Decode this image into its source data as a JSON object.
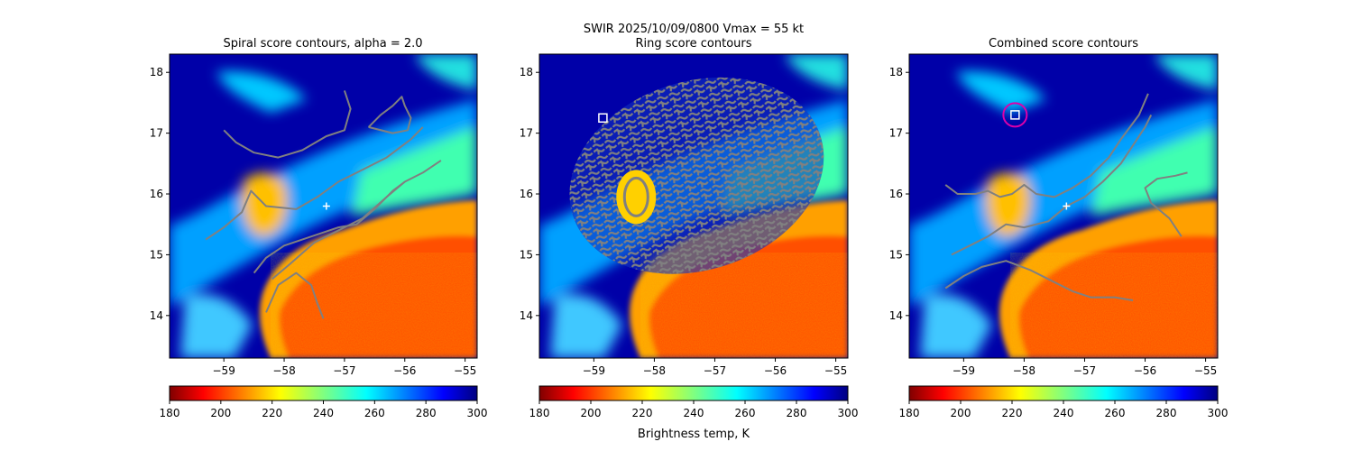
{
  "figure": {
    "suptitle_line1": "SWIR  2025/10/09/0800    Vmax = 55 kt",
    "colorbar_label": "Brightness temp, K"
  },
  "chart_data": [
    {
      "type": "heatmap",
      "title": "Spiral score contours, alpha =  2.0",
      "xlim": [
        -59.9,
        -54.8
      ],
      "ylim": [
        13.3,
        18.3
      ],
      "xticks": [
        -59,
        -58,
        -57,
        -56,
        -55
      ],
      "yticks": [
        14,
        15,
        16,
        17,
        18
      ],
      "colorbar": {
        "cmap": "jet_r",
        "range": [
          180,
          300
        ],
        "ticks": [
          180,
          200,
          220,
          240,
          260,
          280,
          300
        ]
      },
      "markers": [
        {
          "kind": "plus",
          "color": "#ffffff",
          "lon": -57.3,
          "lat": 15.8
        }
      ],
      "contour_color": "#808080",
      "contours": [
        [
          [
            -59.3,
            15.25
          ],
          [
            -59.0,
            15.45
          ],
          [
            -58.7,
            15.7
          ],
          [
            -58.55,
            16.05
          ],
          [
            -58.3,
            15.8
          ],
          [
            -57.8,
            15.75
          ],
          [
            -57.45,
            15.95
          ],
          [
            -57.1,
            16.2
          ],
          [
            -56.7,
            16.4
          ],
          [
            -56.3,
            16.6
          ],
          [
            -55.9,
            16.9
          ],
          [
            -55.7,
            17.1
          ]
        ],
        [
          [
            -58.2,
            14.6
          ],
          [
            -57.9,
            14.85
          ],
          [
            -57.5,
            15.2
          ],
          [
            -57.0,
            15.45
          ],
          [
            -56.7,
            15.6
          ],
          [
            -56.3,
            15.95
          ],
          [
            -56.0,
            16.2
          ],
          [
            -55.7,
            16.35
          ],
          [
            -55.4,
            16.55
          ]
        ],
        [
          [
            -58.5,
            14.7
          ],
          [
            -58.3,
            14.95
          ],
          [
            -58.0,
            15.15
          ],
          [
            -57.7,
            15.25
          ],
          [
            -57.4,
            15.35
          ],
          [
            -57.1,
            15.45
          ],
          [
            -56.8,
            15.5
          ],
          [
            -56.5,
            15.75
          ],
          [
            -56.2,
            16.05
          ],
          [
            -56.0,
            16.2
          ]
        ],
        [
          [
            -58.3,
            14.05
          ],
          [
            -58.1,
            14.5
          ],
          [
            -57.8,
            14.7
          ],
          [
            -57.55,
            14.5
          ],
          [
            -57.45,
            14.2
          ],
          [
            -57.35,
            13.95
          ]
        ],
        [
          [
            -59.0,
            17.05
          ],
          [
            -58.8,
            16.85
          ],
          [
            -58.5,
            16.68
          ],
          [
            -58.1,
            16.6
          ],
          [
            -57.7,
            16.72
          ],
          [
            -57.3,
            16.95
          ],
          [
            -57.0,
            17.05
          ],
          [
            -56.9,
            17.4
          ],
          [
            -57.0,
            17.7
          ]
        ],
        [
          [
            -56.6,
            17.1
          ],
          [
            -56.4,
            17.3
          ],
          [
            -56.2,
            17.45
          ],
          [
            -56.05,
            17.6
          ],
          [
            -56.0,
            17.45
          ],
          [
            -55.9,
            17.25
          ],
          [
            -55.95,
            17.05
          ],
          [
            -56.2,
            17.0
          ],
          [
            -56.6,
            17.1
          ]
        ]
      ]
    },
    {
      "type": "heatmap",
      "title": "Ring score contours",
      "xlim": [
        -59.9,
        -54.8
      ],
      "ylim": [
        13.3,
        18.3
      ],
      "xticks": [
        -59,
        -58,
        -57,
        -56,
        -55
      ],
      "yticks": [
        14,
        15,
        16,
        17,
        18
      ],
      "colorbar": {
        "cmap": "jet_r",
        "range": [
          180,
          300
        ],
        "ticks": [
          180,
          200,
          220,
          240,
          260,
          280,
          300
        ]
      },
      "markers": [
        {
          "kind": "square",
          "color": "#ffffff",
          "lon": -58.85,
          "lat": 17.25
        }
      ],
      "contour_color": "#808080",
      "ring_region": {
        "center_lon": -57.3,
        "center_lat": 16.3,
        "radius_lon": 2.15,
        "radius_lat": 1.55
      },
      "contours": []
    },
    {
      "type": "heatmap",
      "title": "Combined score contours",
      "xlim": [
        -59.9,
        -54.8
      ],
      "ylim": [
        13.3,
        18.3
      ],
      "xticks": [
        -59,
        -58,
        -57,
        -56,
        -55
      ],
      "yticks": [
        14,
        15,
        16,
        17,
        18
      ],
      "colorbar": {
        "cmap": "jet_r",
        "range": [
          180,
          300
        ],
        "ticks": [
          180,
          200,
          220,
          240,
          260,
          280,
          300
        ]
      },
      "markers": [
        {
          "kind": "plus",
          "color": "#ffffff",
          "lon": -57.3,
          "lat": 15.8
        },
        {
          "kind": "square",
          "color": "#ffffff",
          "lon": -58.15,
          "lat": 17.3
        },
        {
          "kind": "circle",
          "color": "#dd00aa",
          "lon": -58.15,
          "lat": 17.3
        }
      ],
      "contour_color": "#808080",
      "contours": [
        [
          [
            -59.2,
            15.0
          ],
          [
            -58.9,
            15.15
          ],
          [
            -58.6,
            15.3
          ],
          [
            -58.3,
            15.5
          ],
          [
            -58.0,
            15.45
          ],
          [
            -57.6,
            15.55
          ],
          [
            -57.3,
            15.8
          ],
          [
            -57.0,
            15.95
          ],
          [
            -56.7,
            16.2
          ],
          [
            -56.4,
            16.5
          ],
          [
            -56.2,
            16.8
          ],
          [
            -56.0,
            17.1
          ],
          [
            -55.9,
            17.3
          ]
        ],
        [
          [
            -59.3,
            16.15
          ],
          [
            -59.1,
            16.0
          ],
          [
            -58.8,
            16.0
          ],
          [
            -58.6,
            16.05
          ],
          [
            -58.4,
            15.95
          ],
          [
            -58.2,
            16.0
          ],
          [
            -58.0,
            16.15
          ],
          [
            -57.8,
            16.0
          ],
          [
            -57.5,
            15.95
          ],
          [
            -57.2,
            16.1
          ],
          [
            -56.9,
            16.3
          ],
          [
            -56.6,
            16.6
          ],
          [
            -56.4,
            16.9
          ],
          [
            -56.1,
            17.3
          ],
          [
            -55.95,
            17.65
          ]
        ],
        [
          [
            -59.3,
            14.45
          ],
          [
            -59.0,
            14.65
          ],
          [
            -58.7,
            14.8
          ],
          [
            -58.3,
            14.9
          ],
          [
            -57.9,
            14.75
          ],
          [
            -57.5,
            14.55
          ],
          [
            -57.2,
            14.4
          ],
          [
            -56.9,
            14.3
          ],
          [
            -56.5,
            14.3
          ],
          [
            -56.2,
            14.25
          ]
        ],
        [
          [
            -55.4,
            15.3
          ],
          [
            -55.6,
            15.6
          ],
          [
            -55.9,
            15.85
          ],
          [
            -56.0,
            16.1
          ],
          [
            -55.8,
            16.25
          ],
          [
            -55.5,
            16.3
          ],
          [
            -55.3,
            16.35
          ]
        ]
      ]
    }
  ]
}
